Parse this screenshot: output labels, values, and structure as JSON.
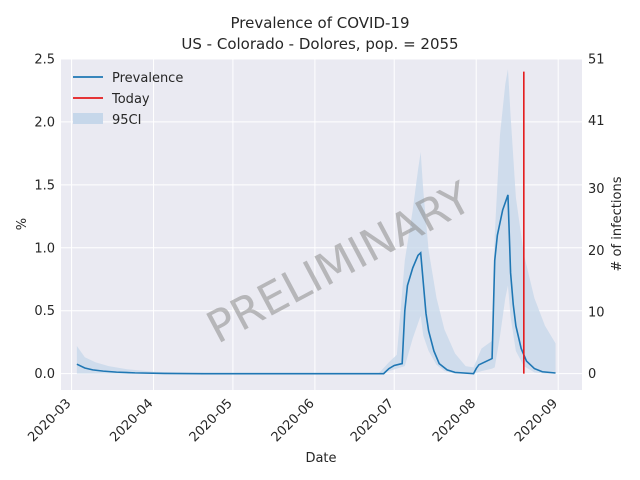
{
  "chart_data": {
    "type": "line",
    "title_line1": "Prevalence of COVID-19",
    "title_line2": "US - Colorado - Dolores, pop. = 2055",
    "xlabel": "Date",
    "ylabel_left": "%",
    "ylabel_right": "# of infections",
    "watermark": "PRELIMINARY",
    "x_range": [
      "2020-02-26",
      "2020-09-10"
    ],
    "ylim_left": [
      -0.13,
      2.5
    ],
    "ylim_right": [
      0,
      51
    ],
    "x_ticks": [
      "2020-03",
      "2020-04",
      "2020-05",
      "2020-06",
      "2020-07",
      "2020-08",
      "2020-09"
    ],
    "y_ticks_left": [
      "0.0",
      "0.5",
      "1.0",
      "1.5",
      "2.0",
      "2.5"
    ],
    "y_ticks_right": [
      "0",
      "10",
      "20",
      "30",
      "41",
      "51"
    ],
    "grid": true,
    "legend_position": "top-left",
    "legend": {
      "prevalence": "Prevalence",
      "today": "Today",
      "ci": "95CI"
    },
    "colors": {
      "prevalence": "#1f77b4",
      "today": "#e41a1c",
      "ci": "#c6d7ea",
      "background": "#eaeaf2",
      "grid": "#ffffff"
    },
    "today": {
      "date": "2020-08-19",
      "y_range": [
        0,
        2.4
      ]
    },
    "series": [
      {
        "name": "Prevalence",
        "points": [
          [
            "2020-03-03",
            0.075
          ],
          [
            "2020-03-06",
            0.045
          ],
          [
            "2020-03-09",
            0.03
          ],
          [
            "2020-03-13",
            0.02
          ],
          [
            "2020-03-18",
            0.012
          ],
          [
            "2020-03-25",
            0.006
          ],
          [
            "2020-04-05",
            0.002
          ],
          [
            "2020-04-20",
            0.0
          ],
          [
            "2020-06-27",
            0.0
          ],
          [
            "2020-06-29",
            0.04
          ],
          [
            "2020-07-01",
            0.065
          ],
          [
            "2020-07-04",
            0.08
          ],
          [
            "2020-07-05",
            0.5
          ],
          [
            "2020-07-06",
            0.7
          ],
          [
            "2020-07-08",
            0.84
          ],
          [
            "2020-07-10",
            0.94
          ],
          [
            "2020-07-11",
            0.96
          ],
          [
            "2020-07-12",
            0.72
          ],
          [
            "2020-07-13",
            0.48
          ],
          [
            "2020-07-14",
            0.34
          ],
          [
            "2020-07-16",
            0.18
          ],
          [
            "2020-07-18",
            0.08
          ],
          [
            "2020-07-21",
            0.03
          ],
          [
            "2020-07-24",
            0.01
          ],
          [
            "2020-07-31",
            0.0
          ],
          [
            "2020-08-01",
            0.04
          ],
          [
            "2020-08-02",
            0.07
          ],
          [
            "2020-08-04",
            0.09
          ],
          [
            "2020-08-06",
            0.11
          ],
          [
            "2020-08-07",
            0.12
          ],
          [
            "2020-08-08",
            0.9
          ],
          [
            "2020-08-09",
            1.1
          ],
          [
            "2020-08-11",
            1.3
          ],
          [
            "2020-08-12",
            1.36
          ],
          [
            "2020-08-13",
            1.42
          ],
          [
            "2020-08-14",
            0.8
          ],
          [
            "2020-08-15",
            0.55
          ],
          [
            "2020-08-16",
            0.38
          ],
          [
            "2020-08-18",
            0.2
          ],
          [
            "2020-08-20",
            0.1
          ],
          [
            "2020-08-23",
            0.04
          ],
          [
            "2020-08-26",
            0.015
          ],
          [
            "2020-08-31",
            0.005
          ]
        ]
      },
      {
        "name": "95CI",
        "points": [
          [
            "2020-03-03",
            0.0,
            0.22
          ],
          [
            "2020-03-06",
            0.0,
            0.13
          ],
          [
            "2020-03-10",
            0.0,
            0.09
          ],
          [
            "2020-03-15",
            0.0,
            0.06
          ],
          [
            "2020-03-22",
            0.0,
            0.035
          ],
          [
            "2020-04-01",
            0.0,
            0.015
          ],
          [
            "2020-04-15",
            0.0,
            0.005
          ],
          [
            "2020-06-25",
            0.0,
            0.0
          ],
          [
            "2020-06-29",
            0.02,
            0.09
          ],
          [
            "2020-07-02",
            0.04,
            0.15
          ],
          [
            "2020-07-05",
            0.06,
            0.9
          ],
          [
            "2020-07-08",
            0.28,
            1.3
          ],
          [
            "2020-07-10",
            0.4,
            1.62
          ],
          [
            "2020-07-11",
            0.46,
            1.76
          ],
          [
            "2020-07-12",
            0.3,
            1.45
          ],
          [
            "2020-07-14",
            0.18,
            0.98
          ],
          [
            "2020-07-17",
            0.07,
            0.6
          ],
          [
            "2020-07-20",
            0.02,
            0.35
          ],
          [
            "2020-07-24",
            0.0,
            0.16
          ],
          [
            "2020-07-28",
            0.0,
            0.06
          ],
          [
            "2020-07-31",
            0.0,
            0.05
          ],
          [
            "2020-08-03",
            0.02,
            0.2
          ],
          [
            "2020-08-07",
            0.04,
            0.26
          ],
          [
            "2020-08-08",
            0.05,
            1.1
          ],
          [
            "2020-08-10",
            0.3,
            1.9
          ],
          [
            "2020-08-12",
            0.6,
            2.3
          ],
          [
            "2020-08-13",
            0.7,
            2.42
          ],
          [
            "2020-08-14",
            0.45,
            2.05
          ],
          [
            "2020-08-16",
            0.18,
            1.4
          ],
          [
            "2020-08-19",
            0.06,
            0.95
          ],
          [
            "2020-08-23",
            0.01,
            0.6
          ],
          [
            "2020-08-27",
            0.0,
            0.38
          ],
          [
            "2020-08-31",
            0.0,
            0.24
          ]
        ]
      }
    ]
  }
}
